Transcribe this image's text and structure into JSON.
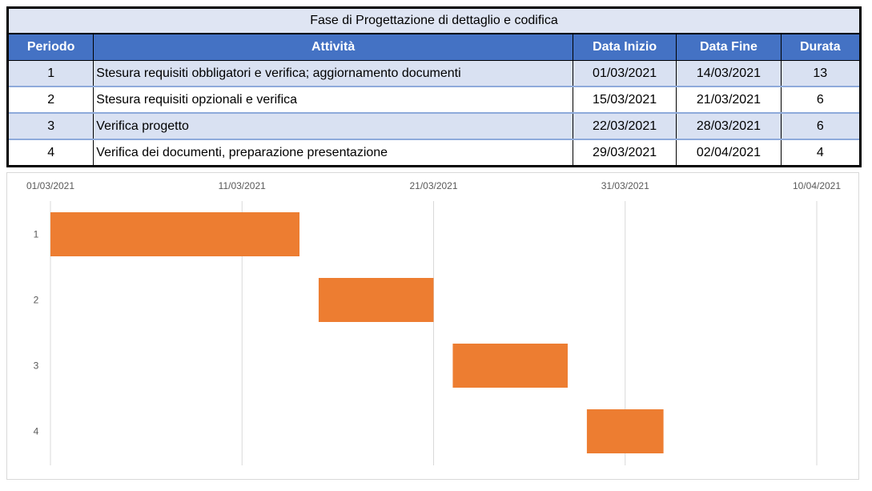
{
  "table": {
    "title": "Fase di Progettazione di dettaglio e codifica",
    "headers": [
      "Periodo",
      "Attività",
      "Data Inizio",
      "Data Fine",
      "Durata"
    ],
    "rows": [
      {
        "periodo": "1",
        "attivita": "Stesura requisiti obbligatori e verifica; aggiornamento documenti",
        "inizio": "01/03/2021",
        "fine": "14/03/2021",
        "durata": "13"
      },
      {
        "periodo": "2",
        "attivita": "Stesura requisiti opzionali e verifica",
        "inizio": "15/03/2021",
        "fine": "21/03/2021",
        "durata": "6"
      },
      {
        "periodo": "3",
        "attivita": "Verifica progetto",
        "inizio": "22/03/2021",
        "fine": "28/03/2021",
        "durata": "6"
      },
      {
        "periodo": "4",
        "attivita": "Verifica dei documenti, preparazione presentazione",
        "inizio": "29/03/2021",
        "fine": "02/04/2021",
        "durata": "4"
      }
    ],
    "colors": {
      "header_bg": "#4472c4",
      "band_bg": "#d9e1f2"
    }
  },
  "chart_data": {
    "type": "bar",
    "orientation": "horizontal",
    "categories": [
      "1",
      "2",
      "3",
      "4"
    ],
    "series": [
      {
        "start": [
          "2021-03-01",
          "2021-03-15",
          "2021-03-22",
          "2021-03-29"
        ],
        "duration_days": [
          13,
          6,
          6,
          4
        ]
      }
    ],
    "xlim": [
      "2021-03-01",
      "2021-04-10"
    ],
    "xticks": [
      "01/03/2021",
      "11/03/2021",
      "21/03/2021",
      "31/03/2021",
      "10/04/2021"
    ],
    "x_axis_position": "top",
    "grid": true,
    "legend": false,
    "bar_color": "#ed7d31",
    "grid_color": "#d9d9d9"
  }
}
